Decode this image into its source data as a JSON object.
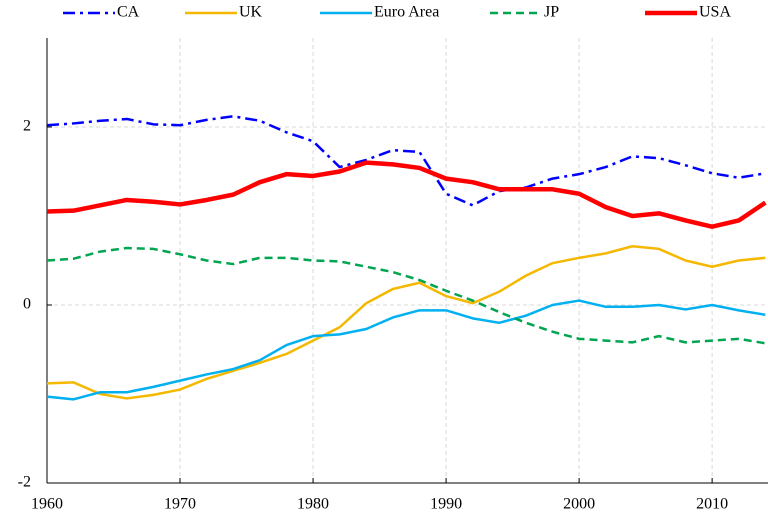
{
  "chart_data": {
    "type": "line",
    "x": [
      1960,
      1962,
      1964,
      1966,
      1968,
      1970,
      1972,
      1974,
      1976,
      1978,
      1980,
      1982,
      1984,
      1986,
      1988,
      1990,
      1992,
      1994,
      1996,
      1998,
      2000,
      2002,
      2004,
      2006,
      2008,
      2010,
      2012,
      2014
    ],
    "series": [
      {
        "name": "CA",
        "color": "#0000ff",
        "dash": "dashdot",
        "width": 2.5,
        "values": [
          2.02,
          2.04,
          2.07,
          2.09,
          2.03,
          2.02,
          2.08,
          2.12,
          2.07,
          1.94,
          1.84,
          1.55,
          1.63,
          1.74,
          1.72,
          1.25,
          1.12,
          1.28,
          1.32,
          1.42,
          1.47,
          1.55,
          1.67,
          1.65,
          1.57,
          1.48,
          1.43,
          1.48
        ]
      },
      {
        "name": "UK",
        "color": "#f5b800",
        "dash": "solid",
        "width": 2.5,
        "values": [
          -0.88,
          -0.87,
          -1.0,
          -1.05,
          -1.01,
          -0.95,
          -0.83,
          -0.74,
          -0.65,
          -0.55,
          -0.4,
          -0.25,
          0.02,
          0.18,
          0.25,
          0.1,
          0.02,
          0.15,
          0.33,
          0.47,
          0.53,
          0.58,
          0.66,
          0.63,
          0.5,
          0.43,
          0.5,
          0.53
        ]
      },
      {
        "name": "Euro Area",
        "color": "#00b0f0",
        "dash": "solid",
        "width": 2.5,
        "values": [
          -1.03,
          -1.06,
          -0.98,
          -0.98,
          -0.92,
          -0.85,
          -0.78,
          -0.72,
          -0.62,
          -0.45,
          -0.35,
          -0.33,
          -0.27,
          -0.14,
          -0.06,
          -0.06,
          -0.15,
          -0.2,
          -0.12,
          0.0,
          0.05,
          -0.02,
          -0.02,
          0.0,
          -0.05,
          0.0,
          -0.06,
          -0.11
        ]
      },
      {
        "name": "JP",
        "color": "#00a550",
        "dash": "dashed",
        "width": 2.5,
        "values": [
          0.5,
          0.52,
          0.6,
          0.64,
          0.63,
          0.57,
          0.5,
          0.46,
          0.53,
          0.53,
          0.5,
          0.49,
          0.43,
          0.37,
          0.28,
          0.16,
          0.05,
          -0.08,
          -0.2,
          -0.3,
          -0.38,
          -0.4,
          -0.42,
          -0.35,
          -0.42,
          -0.4,
          -0.38,
          -0.43
        ]
      },
      {
        "name": "USA",
        "color": "#ff0000",
        "dash": "solid",
        "width": 4.5,
        "values": [
          1.05,
          1.06,
          1.12,
          1.18,
          1.16,
          1.13,
          1.18,
          1.24,
          1.38,
          1.47,
          1.45,
          1.5,
          1.6,
          1.58,
          1.54,
          1.42,
          1.38,
          1.3,
          1.3,
          1.3,
          1.25,
          1.1,
          1.0,
          1.03,
          0.95,
          0.88,
          0.95,
          1.15
        ]
      }
    ],
    "xlim": [
      1960,
      2014.2
    ],
    "xticks": [
      1960,
      1970,
      1980,
      1990,
      2000,
      2010
    ],
    "ylim": [
      -2,
      3
    ],
    "yticks": [
      -2,
      0,
      2
    ],
    "grid": true,
    "legend": "top"
  }
}
